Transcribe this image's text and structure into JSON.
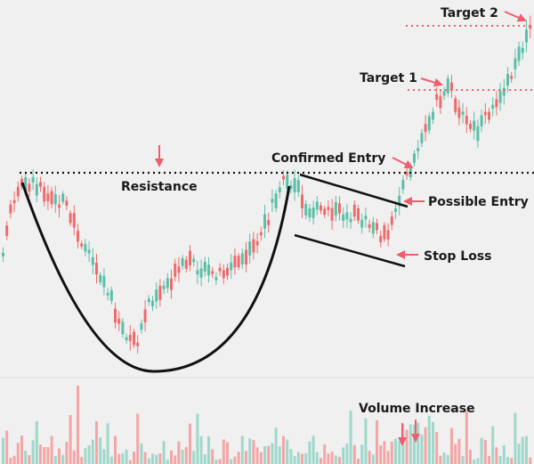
{
  "chart_data": {
    "type": "candlestick",
    "colors": {
      "background": "#f0f0f0",
      "up": "#5bbfa7",
      "down": "#ef6b6b",
      "volume_up": "#9fd8cb",
      "volume_down": "#f4a6a6",
      "annotation_line": "#111111",
      "target_line": "#ef5d6f",
      "arrow": "#ef5d6f"
    },
    "grid": false,
    "annotations": {
      "resistance": "Resistance",
      "confirmed_entry": "Confirmed Entry",
      "possible_entry": "Possible Entry",
      "stop_loss": "Stop Loss",
      "target_1": "Target 1",
      "target_2": "Target 2",
      "volume_increase": "Volume Increase"
    }
  }
}
